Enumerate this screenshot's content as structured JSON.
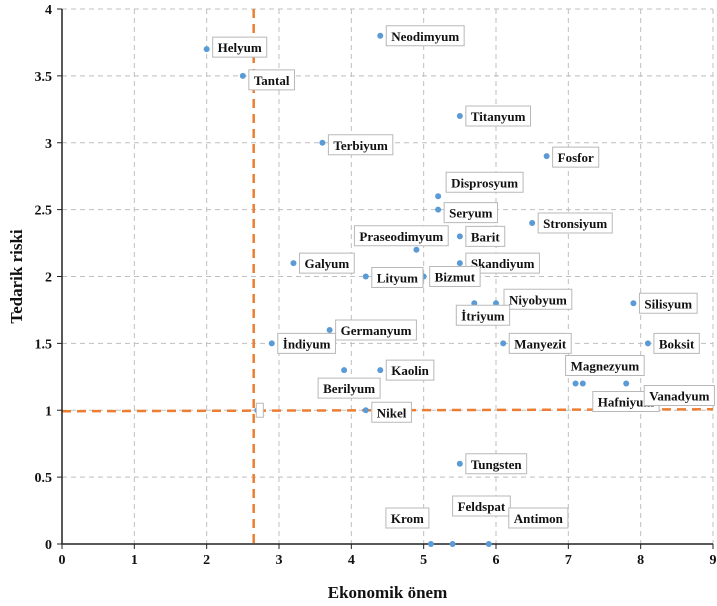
{
  "chart_data": {
    "type": "scatter",
    "xlabel": "Ekonomik önem",
    "ylabel": "Tedarik riski",
    "xlim": [
      0,
      9
    ],
    "ylim": [
      0,
      4
    ],
    "xticks": [
      "0",
      "1",
      "2",
      "3",
      "4",
      "5",
      "6",
      "7",
      "8",
      "9"
    ],
    "yticks": [
      "0",
      "0.5",
      "1",
      "1.5",
      "2",
      "2.5",
      "3",
      "3.5",
      "4"
    ],
    "grid": true,
    "threshold_lines": {
      "x": 2.65,
      "y": 1.0
    },
    "colors": {
      "point": "#5b9bd5",
      "threshold": "#ed7d31",
      "grid": "#bfbfbf"
    },
    "points": [
      {
        "label": "Helyum",
        "x": 2.0,
        "y": 3.7
      },
      {
        "label": "Tantal",
        "x": 2.5,
        "y": 3.5
      },
      {
        "label": "Neodimyum",
        "x": 4.4,
        "y": 3.8
      },
      {
        "label": "Titanyum",
        "x": 5.5,
        "y": 3.2
      },
      {
        "label": "Terbiyum",
        "x": 3.6,
        "y": 3.0
      },
      {
        "label": "Fosfor",
        "x": 6.7,
        "y": 2.9
      },
      {
        "label": "Disprosyum",
        "x": 5.2,
        "y": 2.6
      },
      {
        "label": "Seryum",
        "x": 5.2,
        "y": 2.5
      },
      {
        "label": "Stronsiyum",
        "x": 6.5,
        "y": 2.4
      },
      {
        "label": "Praseodimyum",
        "x": 4.9,
        "y": 2.2
      },
      {
        "label": "Barit",
        "x": 5.5,
        "y": 2.3
      },
      {
        "label": "Galyum",
        "x": 3.2,
        "y": 2.1
      },
      {
        "label": "Skandiyum",
        "x": 5.5,
        "y": 2.1
      },
      {
        "label": "Lityum",
        "x": 4.2,
        "y": 2.0
      },
      {
        "label": "Bizmut",
        "x": 5.0,
        "y": 2.0
      },
      {
        "label": "Niyobyum",
        "x": 6.0,
        "y": 1.8
      },
      {
        "label": "İtriyum",
        "x": 5.7,
        "y": 1.8
      },
      {
        "label": "Silisyum",
        "x": 7.9,
        "y": 1.8
      },
      {
        "label": "Germanyum",
        "x": 3.7,
        "y": 1.6
      },
      {
        "label": "İndiyum",
        "x": 2.9,
        "y": 1.5
      },
      {
        "label": "Manyezit",
        "x": 6.1,
        "y": 1.5
      },
      {
        "label": "Boksit",
        "x": 8.1,
        "y": 1.5
      },
      {
        "label": "Kaolin",
        "x": 4.4,
        "y": 1.3
      },
      {
        "label": "Berilyum",
        "x": 3.9,
        "y": 1.3
      },
      {
        "label": "Magnezyum",
        "x": 7.1,
        "y": 1.2
      },
      {
        "label": "Hafniyum",
        "x": 7.2,
        "y": 1.2
      },
      {
        "label": "Vanadyum",
        "x": 7.8,
        "y": 1.2
      },
      {
        "label": "",
        "x": 2.7,
        "y": 1.0
      },
      {
        "label": "Nikel",
        "x": 4.2,
        "y": 1.0
      },
      {
        "label": "Tungsten",
        "x": 5.5,
        "y": 0.6
      },
      {
        "label": "Krom",
        "x": 5.1,
        "y": 0.0
      },
      {
        "label": "Feldspat",
        "x": 5.4,
        "y": 0.0
      },
      {
        "label": "Antimon",
        "x": 5.9,
        "y": 0.0
      }
    ]
  }
}
